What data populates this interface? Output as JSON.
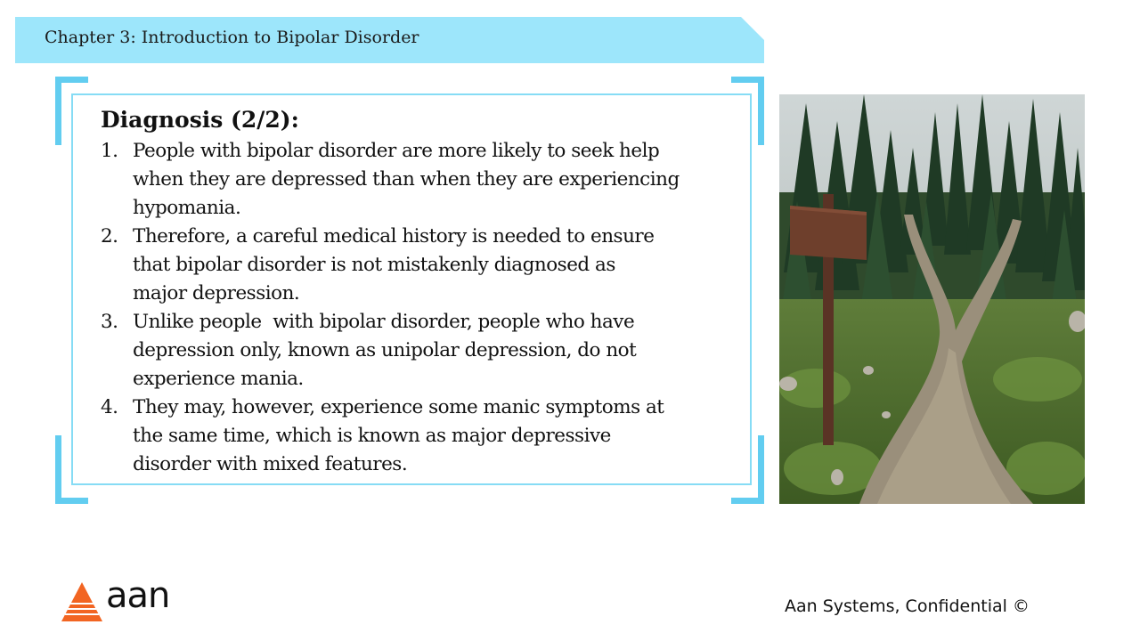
{
  "header": {
    "chapter_title": "Chapter 3: Introduction to Bipolar Disorder"
  },
  "content": {
    "heading": "Diagnosis (2/2):",
    "items": [
      {
        "num": "1.",
        "lines": [
          "People with bipolar disorder are more likely to seek help",
          "when they are depressed than when they are experiencing",
          "hypomania."
        ]
      },
      {
        "num": "2.",
        "lines": [
          "Therefore, a careful medical history is needed to ensure",
          "that bipolar disorder is not mistakenly diagnosed as",
          "major depression."
        ]
      },
      {
        "num": "3.",
        "lines": [
          "Unlike people  with bipolar disorder, people who have",
          "depression only, known as unipolar depression, do not",
          "experience mania."
        ]
      },
      {
        "num": "4.",
        "lines": [
          "They may, however, experience some manic symptoms at",
          "the same time, which is known as major depressive",
          "disorder with mixed features."
        ]
      }
    ]
  },
  "image": {
    "icon": "forest-path-fork-signpost-image"
  },
  "footer": {
    "logo_text": "aan",
    "confidential": "Aan Systems, Confidential ©"
  },
  "colors": {
    "banner": "#9de6fb",
    "frame_accent": "#62cdf0",
    "frame_inner": "#86dcf5",
    "logo_orange": "#f26522"
  }
}
